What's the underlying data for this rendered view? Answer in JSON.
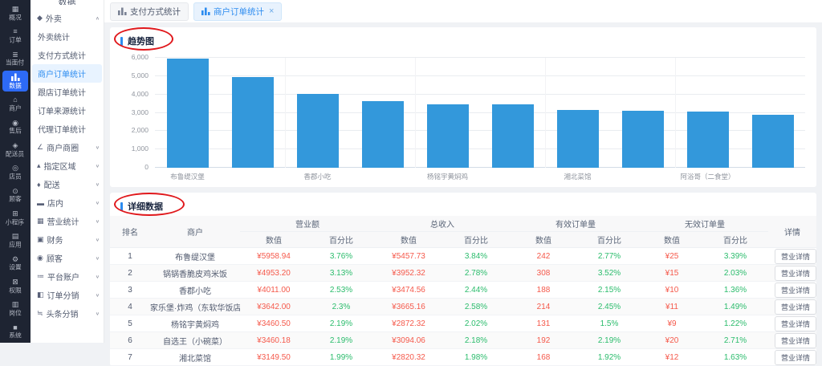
{
  "colors": {
    "accent": "#2d8cf0",
    "rail_active": "#2d6af6",
    "bar_blue": "#3398db",
    "value_red": "#f5594b",
    "pct_green": "#2bbc6c",
    "annotation_red": "#e0181c",
    "rail_bg": "#1e2432",
    "selected_menu_bg": "#e8f3ff"
  },
  "rail": {
    "items": [
      {
        "name": "overview",
        "label": "概况",
        "glyph": "▦",
        "active": false
      },
      {
        "name": "orders",
        "label": "订单",
        "glyph": "≡",
        "active": false
      },
      {
        "name": "face-to-face-pay",
        "label": "当面付",
        "glyph": "≣",
        "active": false
      },
      {
        "name": "data",
        "label": "数据",
        "glyph": "bars",
        "active": true
      },
      {
        "name": "merchant",
        "label": "商户",
        "glyph": "⌂",
        "active": false
      },
      {
        "name": "after-sales",
        "label": "售后",
        "glyph": "◉",
        "active": false
      },
      {
        "name": "courier",
        "label": "配送员",
        "glyph": "◈",
        "active": false
      },
      {
        "name": "store-staff",
        "label": "店员",
        "glyph": "◎",
        "active": false
      },
      {
        "name": "customer",
        "label": "顾客",
        "glyph": "⊙",
        "active": false
      },
      {
        "name": "mini-program",
        "label": "小程序",
        "glyph": "⊞",
        "active": false
      },
      {
        "name": "apps",
        "label": "应用",
        "glyph": "▤",
        "active": false
      },
      {
        "name": "settings",
        "label": "设置",
        "glyph": "⚙",
        "active": false
      },
      {
        "name": "permissions",
        "label": "权限",
        "glyph": "⊠",
        "active": false
      },
      {
        "name": "positions",
        "label": "岗位",
        "glyph": "▥",
        "active": false
      },
      {
        "name": "system",
        "label": "系统",
        "glyph": "■",
        "active": false
      }
    ]
  },
  "sidebar": {
    "title": "数据",
    "items": [
      {
        "name": "takeout",
        "label": "外卖",
        "type": "group",
        "glyph": "◆",
        "chevron": "∧"
      },
      {
        "name": "takeout-stats",
        "label": "外卖统计",
        "type": "sub",
        "selected": false
      },
      {
        "name": "payment-method-stats",
        "label": "支付方式统计",
        "type": "sub",
        "selected": false
      },
      {
        "name": "merchant-order-stats",
        "label": "商户订单统计",
        "type": "sub",
        "selected": true
      },
      {
        "name": "store-order-stats",
        "label": "跟店订单统计",
        "type": "sub",
        "selected": false
      },
      {
        "name": "order-source-stats",
        "label": "订单来源统计",
        "type": "sub",
        "selected": false
      },
      {
        "name": "agent-order-stats",
        "label": "代理订单统计",
        "type": "sub",
        "selected": false
      },
      {
        "name": "merchant-district",
        "label": "商户商圈",
        "type": "group",
        "glyph": "∠",
        "chevron": "∨"
      },
      {
        "name": "designated-area",
        "label": "指定区域",
        "type": "group",
        "glyph": "▴",
        "chevron": "∨"
      },
      {
        "name": "delivery",
        "label": "配送",
        "type": "group",
        "glyph": "♦",
        "chevron": "∨"
      },
      {
        "name": "in-store",
        "label": "店内",
        "type": "group",
        "glyph": "▬",
        "chevron": "∨"
      },
      {
        "name": "business-stats",
        "label": "营业统计",
        "type": "group",
        "glyph": "▦",
        "chevron": "∨"
      },
      {
        "name": "finance",
        "label": "财务",
        "type": "group",
        "glyph": "▣",
        "chevron": "∨"
      },
      {
        "name": "customers",
        "label": "顾客",
        "type": "group",
        "glyph": "◉",
        "chevron": "∨"
      },
      {
        "name": "platform-account",
        "label": "平台账户",
        "type": "group",
        "glyph": "≔",
        "chevron": "∨"
      },
      {
        "name": "order-distribution",
        "label": "订单分销",
        "type": "group",
        "glyph": "◧",
        "chevron": "∨"
      },
      {
        "name": "toutiao-distribution",
        "label": "头条分销",
        "type": "group",
        "glyph": "≒",
        "chevron": "∨"
      }
    ]
  },
  "tabs": [
    {
      "name": "payment-method-stats-tab",
      "label": "支付方式统计",
      "active": false,
      "closable": false
    },
    {
      "name": "merchant-order-stats-tab",
      "label": "商户订单统计",
      "active": true,
      "closable": true,
      "close_glyph": "×"
    }
  ],
  "chart_data": {
    "type": "bar",
    "title": "趋势图",
    "bar_color": "#3398db",
    "ylim": [
      0,
      6000
    ],
    "yticks": [
      "0",
      "1,000",
      "2,000",
      "3,000",
      "4,000",
      "5,000",
      "6,000"
    ],
    "grid": true,
    "x_label_shown_every": 2,
    "categories": [
      "布鲁缇汉堡",
      "锅锅香脆皮鸡米饭",
      "香郡小吃",
      "家乐堡·炸鸡（东软华饭店）",
      "杨铭宇黄焖鸡",
      "自选王（小碗菜）",
      "湘北菜馆",
      "",
      "阿浴哥（二食堂）",
      ""
    ],
    "values": [
      5958.94,
      4953.2,
      4011.0,
      3642.0,
      3460.5,
      3460.18,
      3150,
      3090,
      3085,
      2900
    ]
  },
  "detail": {
    "title": "详细数据",
    "table": {
      "col_rank": "排名",
      "col_merchant": "商户",
      "groups": [
        "营业额",
        "总收入",
        "有效订单量",
        "无效订单量"
      ],
      "col_detail": "详情",
      "sub_value": "数值",
      "sub_pct": "百分比",
      "action_label": "营业详情",
      "rows": [
        {
          "rank": "1",
          "merchant": "布鲁缇汉堡",
          "cells": [
            "¥5958.94",
            "3.76%",
            "¥5457.73",
            "3.84%",
            "242",
            "2.77%",
            "¥25",
            "3.39%"
          ]
        },
        {
          "rank": "2",
          "merchant": "锅锅香脆皮鸡米饭",
          "cells": [
            "¥4953.20",
            "3.13%",
            "¥3952.32",
            "2.78%",
            "308",
            "3.52%",
            "¥15",
            "2.03%"
          ]
        },
        {
          "rank": "3",
          "merchant": "香郡小吃",
          "cells": [
            "¥4011.00",
            "2.53%",
            "¥3474.56",
            "2.44%",
            "188",
            "2.15%",
            "¥10",
            "1.36%"
          ]
        },
        {
          "rank": "4",
          "merchant": "家乐堡·炸鸡（东软华饭店）",
          "cells": [
            "¥3642.00",
            "2.3%",
            "¥3665.16",
            "2.58%",
            "214",
            "2.45%",
            "¥11",
            "1.49%"
          ]
        },
        {
          "rank": "5",
          "merchant": "杨铭宇黄焖鸡",
          "cells": [
            "¥3460.50",
            "2.19%",
            "¥2872.32",
            "2.02%",
            "131",
            "1.5%",
            "¥9",
            "1.22%"
          ]
        },
        {
          "rank": "6",
          "merchant": "自选王（小碗菜）",
          "cells": [
            "¥3460.18",
            "2.19%",
            "¥3094.06",
            "2.18%",
            "192",
            "2.19%",
            "¥20",
            "2.71%"
          ]
        },
        {
          "rank": "7",
          "merchant": "湘北菜馆",
          "cells": [
            "¥3149.50",
            "1.99%",
            "¥2820.32",
            "1.98%",
            "168",
            "1.92%",
            "¥12",
            "1.63%"
          ]
        }
      ]
    }
  }
}
